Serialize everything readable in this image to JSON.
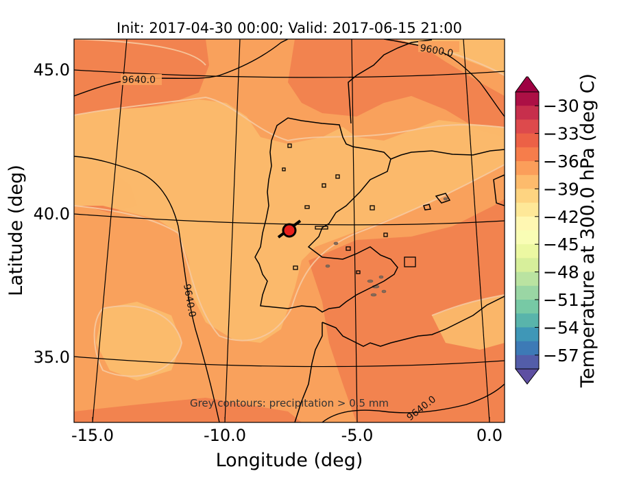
{
  "title": "Init: 2017-04-30 00:00; Valid: 2017-06-15 21:00",
  "x_axis": {
    "label": "Longitude (deg)",
    "ticks": [
      "-15.0",
      "-10.0",
      "-5.0",
      "0.0"
    ]
  },
  "y_axis": {
    "label": "Latitude (deg)",
    "ticks": [
      "35.0",
      "40.0",
      "45.0"
    ]
  },
  "colorbar": {
    "label": "Temperature at 300.0 hPa (deg C)",
    "ticks": [
      "−30",
      "−33",
      "−36",
      "−39",
      "−42",
      "−45",
      "−48",
      "−51",
      "−54",
      "−57"
    ],
    "range": [
      -58.5,
      -28.5
    ],
    "colormap": "Spectral_r",
    "colors": [
      "#5e4fa2",
      "#3288bd",
      "#66c2a5",
      "#abdda4",
      "#e6f598",
      "#ffffbf",
      "#fee08b",
      "#fdae61",
      "#f46d43",
      "#d53e4f",
      "#9e0142"
    ]
  },
  "contour_labels": [
    "9600.0",
    "9640.0",
    "9640.0",
    "9640.0"
  ],
  "annotation": "Grey contours: precipitation > 0.5 mm",
  "marker": {
    "label": "location marker",
    "color": "#e8201c"
  },
  "map": {
    "background_color": "#f9a15c",
    "warm_region_color": "#f2834f",
    "cool_region_color": "#fbbb6c"
  }
}
